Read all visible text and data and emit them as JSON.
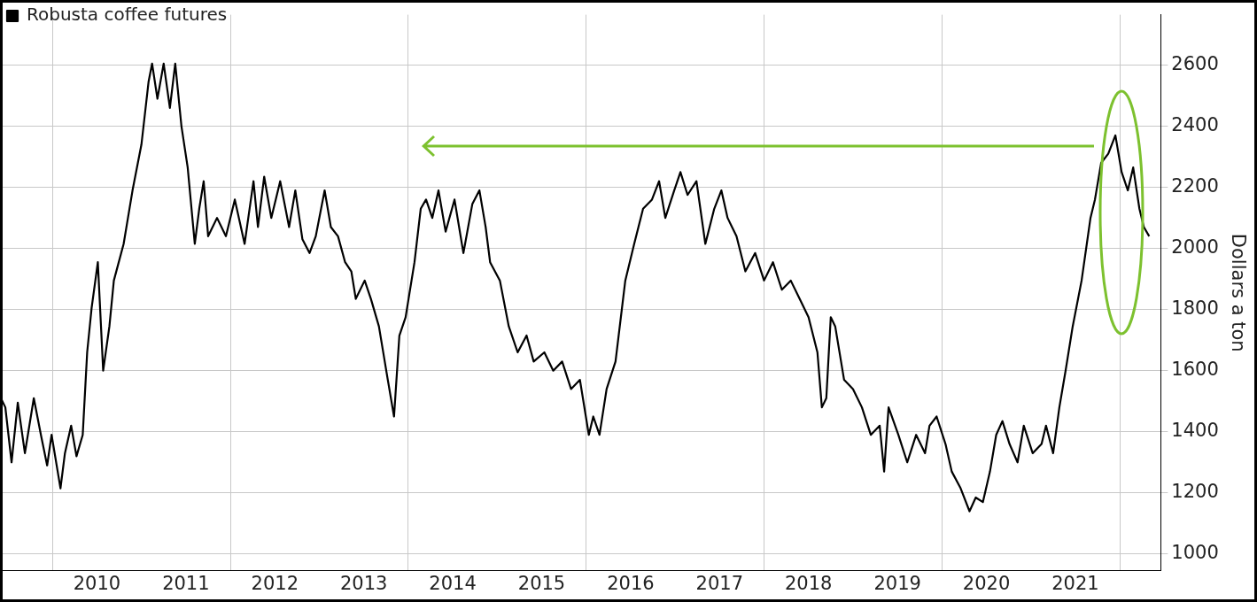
{
  "chart_data": {
    "type": "line",
    "ylabel": "Dollars a ton",
    "legend": "top left",
    "grid": true,
    "marker": "none",
    "line_style": "solid",
    "xlim": [
      2009.41,
      2022.46
    ],
    "ylim": [
      945,
      2765
    ],
    "xticks": [
      {
        "value": 2010,
        "label": null
      },
      {
        "value": 2010.5,
        "label": "2010"
      },
      {
        "value": 2011.5,
        "label": "2011"
      },
      {
        "value": 2012,
        "label": null
      },
      {
        "value": 2012.5,
        "label": "2012"
      },
      {
        "value": 2013.5,
        "label": "2013"
      },
      {
        "value": 2014,
        "label": null
      },
      {
        "value": 2014.5,
        "label": "2014"
      },
      {
        "value": 2015.5,
        "label": "2015"
      },
      {
        "value": 2016,
        "label": null
      },
      {
        "value": 2016.5,
        "label": "2016"
      },
      {
        "value": 2017.5,
        "label": "2017"
      },
      {
        "value": 2018,
        "label": null
      },
      {
        "value": 2018.5,
        "label": "2018"
      },
      {
        "value": 2019.5,
        "label": "2019"
      },
      {
        "value": 2020,
        "label": null
      },
      {
        "value": 2020.5,
        "label": "2020"
      },
      {
        "value": 2021.5,
        "label": "2021"
      },
      {
        "value": 2022,
        "label": null
      }
    ],
    "yticks": [
      1000,
      1200,
      1400,
      1600,
      1800,
      2000,
      2200,
      2400,
      2600
    ],
    "series": [
      {
        "name": "Robusta coffee futures",
        "color": "#000000",
        "x": [
          2009.42,
          2009.47,
          2009.54,
          2009.61,
          2009.69,
          2009.79,
          2009.87,
          2009.94,
          2009.99,
          2010.09,
          2010.14,
          2010.21,
          2010.27,
          2010.34,
          2010.39,
          2010.44,
          2010.51,
          2010.57,
          2010.64,
          2010.69,
          2010.8,
          2010.9,
          2011.0,
          2011.08,
          2011.12,
          2011.18,
          2011.25,
          2011.32,
          2011.38,
          2011.45,
          2011.52,
          2011.6,
          2011.65,
          2011.7,
          2011.75,
          2011.85,
          2011.95,
          2012.05,
          2012.16,
          2012.26,
          2012.31,
          2012.38,
          2012.46,
          2012.56,
          2012.66,
          2012.73,
          2012.81,
          2012.89,
          2012.96,
          2013.06,
          2013.13,
          2013.21,
          2013.29,
          2013.36,
          2013.41,
          2013.51,
          2013.58,
          2013.67,
          2013.77,
          2013.84,
          2013.9,
          2013.97,
          2014.07,
          2014.14,
          2014.2,
          2014.27,
          2014.34,
          2014.42,
          2014.52,
          2014.62,
          2014.72,
          2014.8,
          2014.87,
          2014.92,
          2015.03,
          2015.13,
          2015.23,
          2015.33,
          2015.41,
          2015.53,
          2015.63,
          2015.73,
          2015.83,
          2015.93,
          2016.03,
          2016.08,
          2016.15,
          2016.23,
          2016.33,
          2016.44,
          2016.54,
          2016.64,
          2016.74,
          2016.82,
          2016.89,
          2016.99,
          2017.06,
          2017.14,
          2017.24,
          2017.34,
          2017.44,
          2017.52,
          2017.59,
          2017.69,
          2017.79,
          2017.9,
          2018.0,
          2018.1,
          2018.2,
          2018.3,
          2018.4,
          2018.5,
          2018.6,
          2018.65,
          2018.7,
          2018.75,
          2018.8,
          2018.9,
          2019.0,
          2019.1,
          2019.2,
          2019.3,
          2019.35,
          2019.4,
          2019.51,
          2019.61,
          2019.71,
          2019.81,
          2019.86,
          2019.94,
          2020.04,
          2020.11,
          2020.21,
          2020.31,
          2020.38,
          2020.46,
          2020.54,
          2020.61,
          2020.68,
          2020.76,
          2020.85,
          2020.92,
          2021.02,
          2021.12,
          2021.17,
          2021.25,
          2021.32,
          2021.39,
          2021.47,
          2021.57,
          2021.67,
          2021.72,
          2021.79,
          2021.87,
          2021.95,
          2022.02,
          2022.09,
          2022.15,
          2022.22,
          2022.27,
          2022.33
        ],
        "values": [
          1510,
          1480,
          1300,
          1495,
          1330,
          1510,
          1390,
          1290,
          1390,
          1215,
          1330,
          1420,
          1320,
          1390,
          1660,
          1805,
          1955,
          1600,
          1745,
          1895,
          2015,
          2190,
          2340,
          2545,
          2605,
          2490,
          2605,
          2460,
          2605,
          2400,
          2265,
          2015,
          2130,
          2220,
          2040,
          2100,
          2040,
          2160,
          2015,
          2220,
          2070,
          2235,
          2100,
          2220,
          2070,
          2190,
          2030,
          1985,
          2040,
          2190,
          2070,
          2040,
          1955,
          1925,
          1835,
          1895,
          1835,
          1745,
          1570,
          1450,
          1715,
          1775,
          1955,
          2130,
          2160,
          2100,
          2190,
          2055,
          2160,
          1985,
          2145,
          2190,
          2070,
          1955,
          1895,
          1745,
          1660,
          1715,
          1630,
          1660,
          1600,
          1630,
          1540,
          1570,
          1390,
          1450,
          1390,
          1540,
          1630,
          1895,
          2015,
          2130,
          2160,
          2220,
          2100,
          2190,
          2250,
          2175,
          2220,
          2015,
          2130,
          2190,
          2100,
          2040,
          1925,
          1985,
          1895,
          1955,
          1865,
          1895,
          1835,
          1775,
          1660,
          1480,
          1510,
          1775,
          1745,
          1570,
          1540,
          1480,
          1390,
          1420,
          1270,
          1480,
          1390,
          1300,
          1390,
          1330,
          1420,
          1450,
          1360,
          1270,
          1215,
          1140,
          1185,
          1170,
          1270,
          1390,
          1435,
          1360,
          1300,
          1420,
          1330,
          1360,
          1420,
          1330,
          1480,
          1600,
          1745,
          1895,
          2100,
          2160,
          2280,
          2310,
          2370,
          2250,
          2190,
          2265,
          2130,
          2070,
          2040
        ]
      }
    ]
  }
}
